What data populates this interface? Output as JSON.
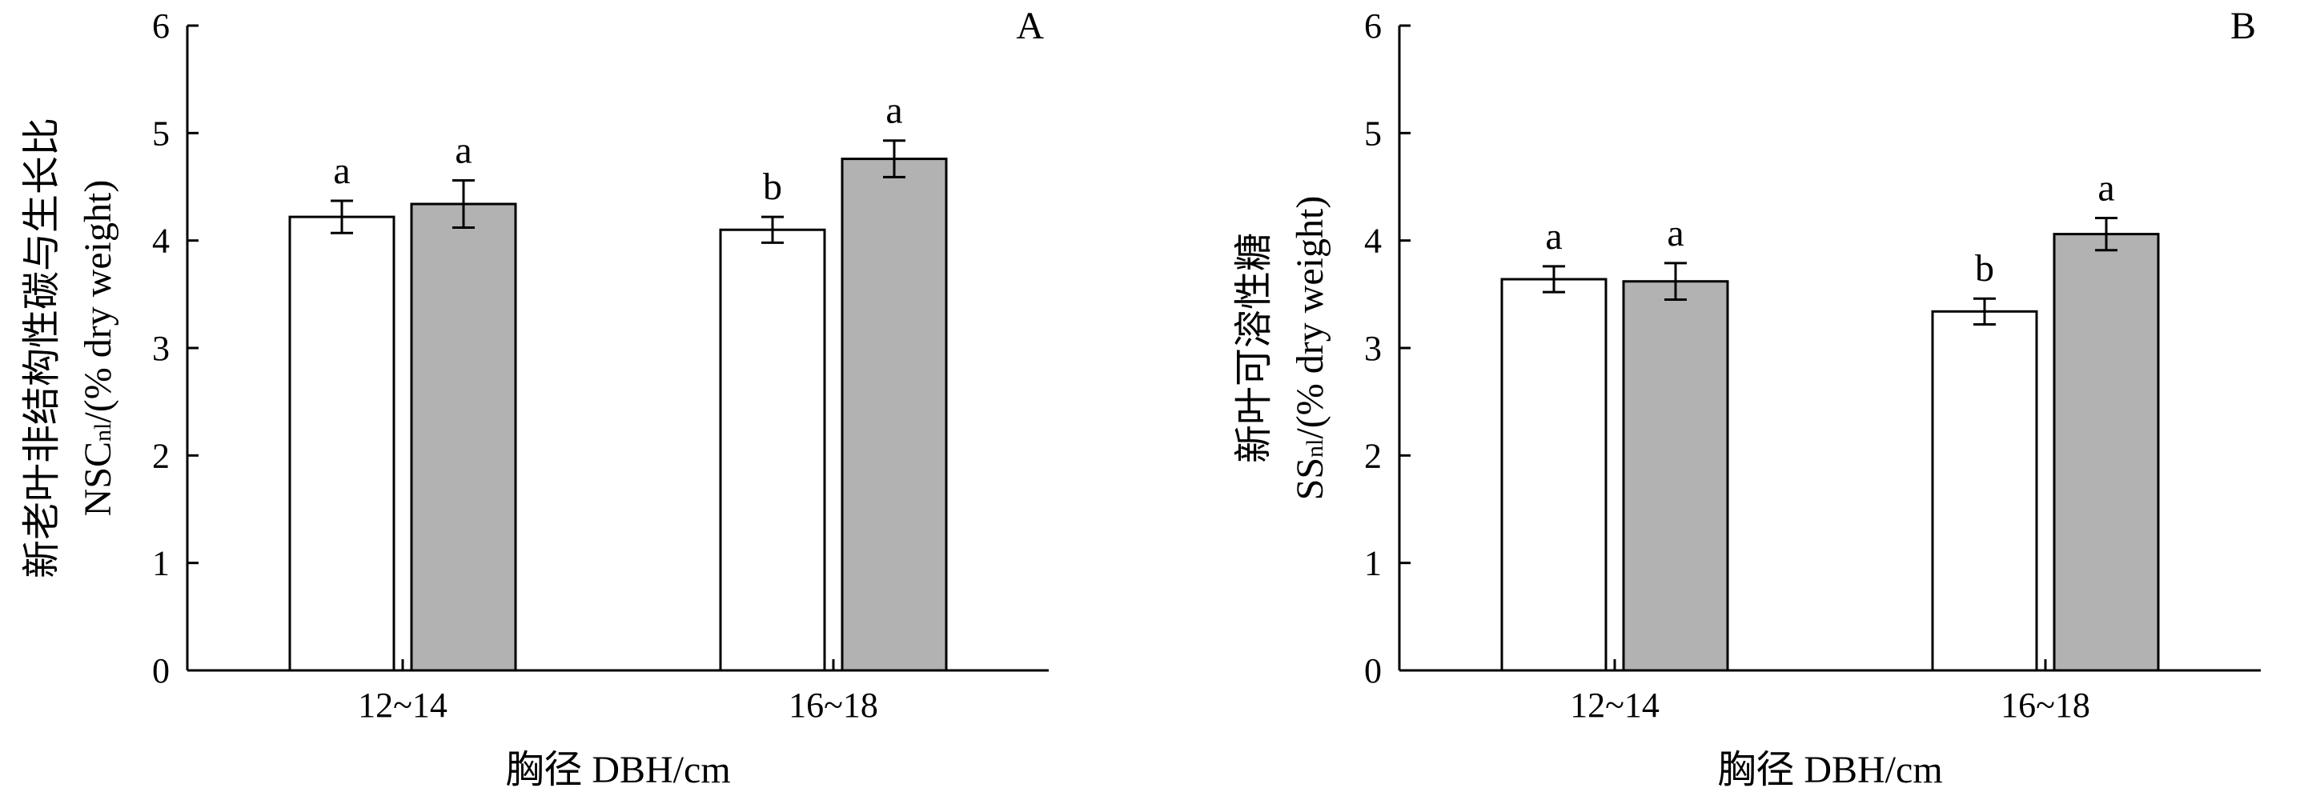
{
  "chart_data": [
    {
      "type": "bar",
      "panel_label": "A",
      "categories": [
        "12~14",
        "16~18"
      ],
      "series": [
        {
          "values": [
            4.22,
            4.1
          ],
          "errors": [
            0.15,
            0.12
          ],
          "letters": [
            "a",
            "b"
          ],
          "color": "#ffffff"
        },
        {
          "values": [
            4.34,
            4.76
          ],
          "errors": [
            0.22,
            0.17
          ],
          "letters": [
            "a",
            "a"
          ],
          "color": "#b2b2b2"
        }
      ],
      "ylim": [
        0,
        6
      ],
      "yticks": [
        "0",
        "1",
        "2",
        "3",
        "4",
        "5",
        "6"
      ],
      "xlabel": "胸径  DBH/cm",
      "ylabel_line1": "新老叶非结构性碳与生长比",
      "ylabel_line2_main": "NSC",
      "ylabel_line2_sub": "nl",
      "ylabel_line2_rest": "/(% dry weight)",
      "grid": false,
      "legend": "none"
    },
    {
      "type": "bar",
      "panel_label": "B",
      "categories": [
        "12~14",
        "16~18"
      ],
      "series": [
        {
          "values": [
            3.64,
            3.34
          ],
          "errors": [
            0.12,
            0.12
          ],
          "letters": [
            "a",
            "b"
          ],
          "color": "#ffffff"
        },
        {
          "values": [
            3.62,
            4.06
          ],
          "errors": [
            0.17,
            0.15
          ],
          "letters": [
            "a",
            "a"
          ],
          "color": "#b2b2b2"
        }
      ],
      "ylim": [
        0,
        6
      ],
      "yticks": [
        "0",
        "1",
        "2",
        "3",
        "4",
        "5",
        "6"
      ],
      "xlabel": "胸径  DBH/cm",
      "ylabel_line1": "新叶可溶性糖",
      "ylabel_line2_main": "SS",
      "ylabel_line2_sub": "nl",
      "ylabel_line2_rest": "/(% dry weight)",
      "grid": false,
      "legend": "none"
    }
  ]
}
